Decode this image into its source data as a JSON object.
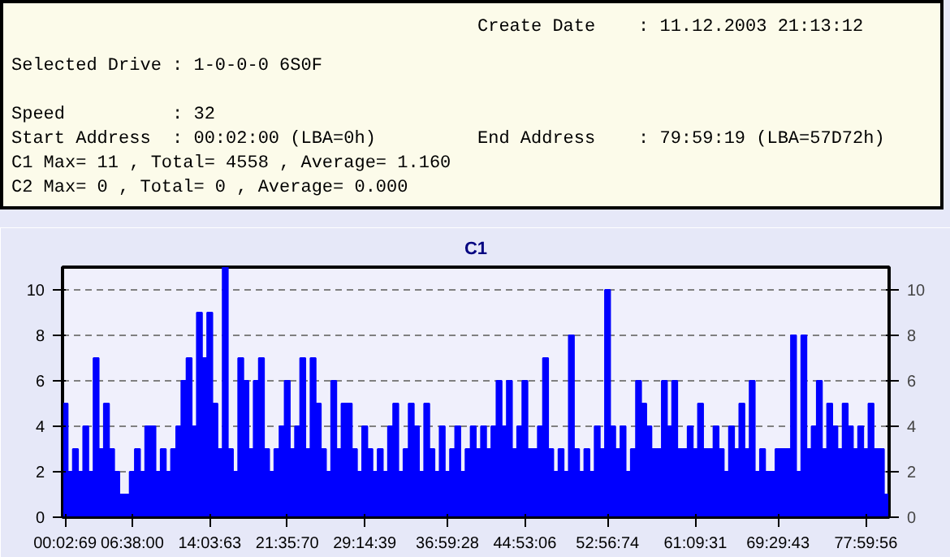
{
  "chart_data": {
    "type": "bar",
    "title": "C1",
    "annotations": [
      "Create Date    : 11.12.2003 21:13:12",
      "Selected Drive : 1-0-0-0 6S0F",
      "Speed          : 32",
      "Start Address  : 00:02:00 (LBA=0h)",
      "End Address    : 79:59:19 (LBA=57D72h)",
      "C1 Max= 11 , Total= 4558 , Average= 1.160",
      "C2 Max= 0 , Total= 0 , Average= 0.000"
    ],
    "categories": [
      "00:02:69",
      null,
      null,
      null,
      null,
      null,
      null,
      null,
      null,
      null,
      null,
      null,
      null,
      "06:38:00",
      null,
      null,
      null,
      null,
      null,
      null,
      null,
      null,
      null,
      null,
      null,
      null,
      null,
      null,
      "14:03:63",
      null,
      null,
      null,
      null,
      null,
      null,
      null,
      null,
      null,
      null,
      null,
      null,
      null,
      null,
      "21:35:70",
      null,
      null,
      null,
      null,
      null,
      null,
      null,
      null,
      null,
      null,
      null,
      null,
      null,
      null,
      "29:14:39",
      null,
      null,
      null,
      null,
      null,
      null,
      null,
      null,
      null,
      null,
      null,
      null,
      null,
      null,
      null,
      "36:59:28",
      null,
      null,
      null,
      null,
      null,
      null,
      null,
      null,
      null,
      null,
      null,
      null,
      null,
      null,
      "44:53:06",
      null,
      null,
      null,
      null,
      null,
      null,
      null,
      null,
      null,
      null,
      null,
      null,
      null,
      null,
      null,
      "52:56:74",
      null,
      null,
      null,
      null,
      null,
      null,
      null,
      null,
      null,
      null,
      null,
      null,
      null,
      null,
      null,
      null,
      "61:09:31",
      null,
      null,
      null,
      null,
      null,
      null,
      null,
      null,
      null,
      null,
      null,
      null,
      null,
      null,
      null,
      "69:29:43",
      null,
      null,
      null,
      null,
      null,
      null,
      null,
      null,
      null,
      null,
      null,
      null,
      null,
      null,
      null,
      null,
      "77:59:56",
      null,
      null,
      null,
      null
    ],
    "series": [
      {
        "color": "#0000ff",
        "values": [
          5,
          2,
          3,
          2,
          4,
          2,
          7,
          3,
          5,
          3,
          2,
          1,
          1,
          2,
          3,
          2,
          4,
          4,
          2,
          3,
          2,
          3,
          4,
          6,
          7,
          4,
          9,
          7,
          9,
          5,
          3,
          11,
          3,
          2,
          7,
          6,
          3,
          6,
          7,
          3,
          2,
          3,
          4,
          6,
          3,
          4,
          7,
          3,
          7,
          5,
          3,
          2,
          6,
          3,
          5,
          5,
          3,
          2,
          4,
          3,
          2,
          3,
          2,
          4,
          5,
          2,
          3,
          5,
          4,
          2,
          5,
          3,
          2,
          4,
          2,
          3,
          4,
          2,
          3,
          4,
          3,
          4,
          3,
          4,
          6,
          4,
          6,
          3,
          4,
          6,
          3,
          3,
          4,
          7,
          3,
          2,
          3,
          2,
          8,
          3,
          2,
          3,
          2,
          4,
          3,
          10,
          4,
          3,
          4,
          2,
          3,
          6,
          5,
          4,
          3,
          3,
          6,
          4,
          6,
          3,
          3,
          4,
          3,
          5,
          3,
          3,
          4,
          3,
          2,
          4,
          3,
          5,
          3,
          6,
          2,
          3,
          2,
          2,
          3,
          3,
          3,
          8,
          2,
          8,
          3,
          4,
          6,
          3,
          5,
          4,
          3,
          5,
          4,
          3,
          4,
          3,
          5,
          3,
          3,
          1
        ]
      }
    ],
    "ylim": [
      0,
      11
    ],
    "yticks": [
      0,
      2,
      4,
      6,
      8,
      10
    ],
    "y2lim": [
      0,
      11
    ],
    "y2ticks": [
      0,
      2,
      4,
      6,
      8,
      10
    ],
    "grid": "y"
  }
}
